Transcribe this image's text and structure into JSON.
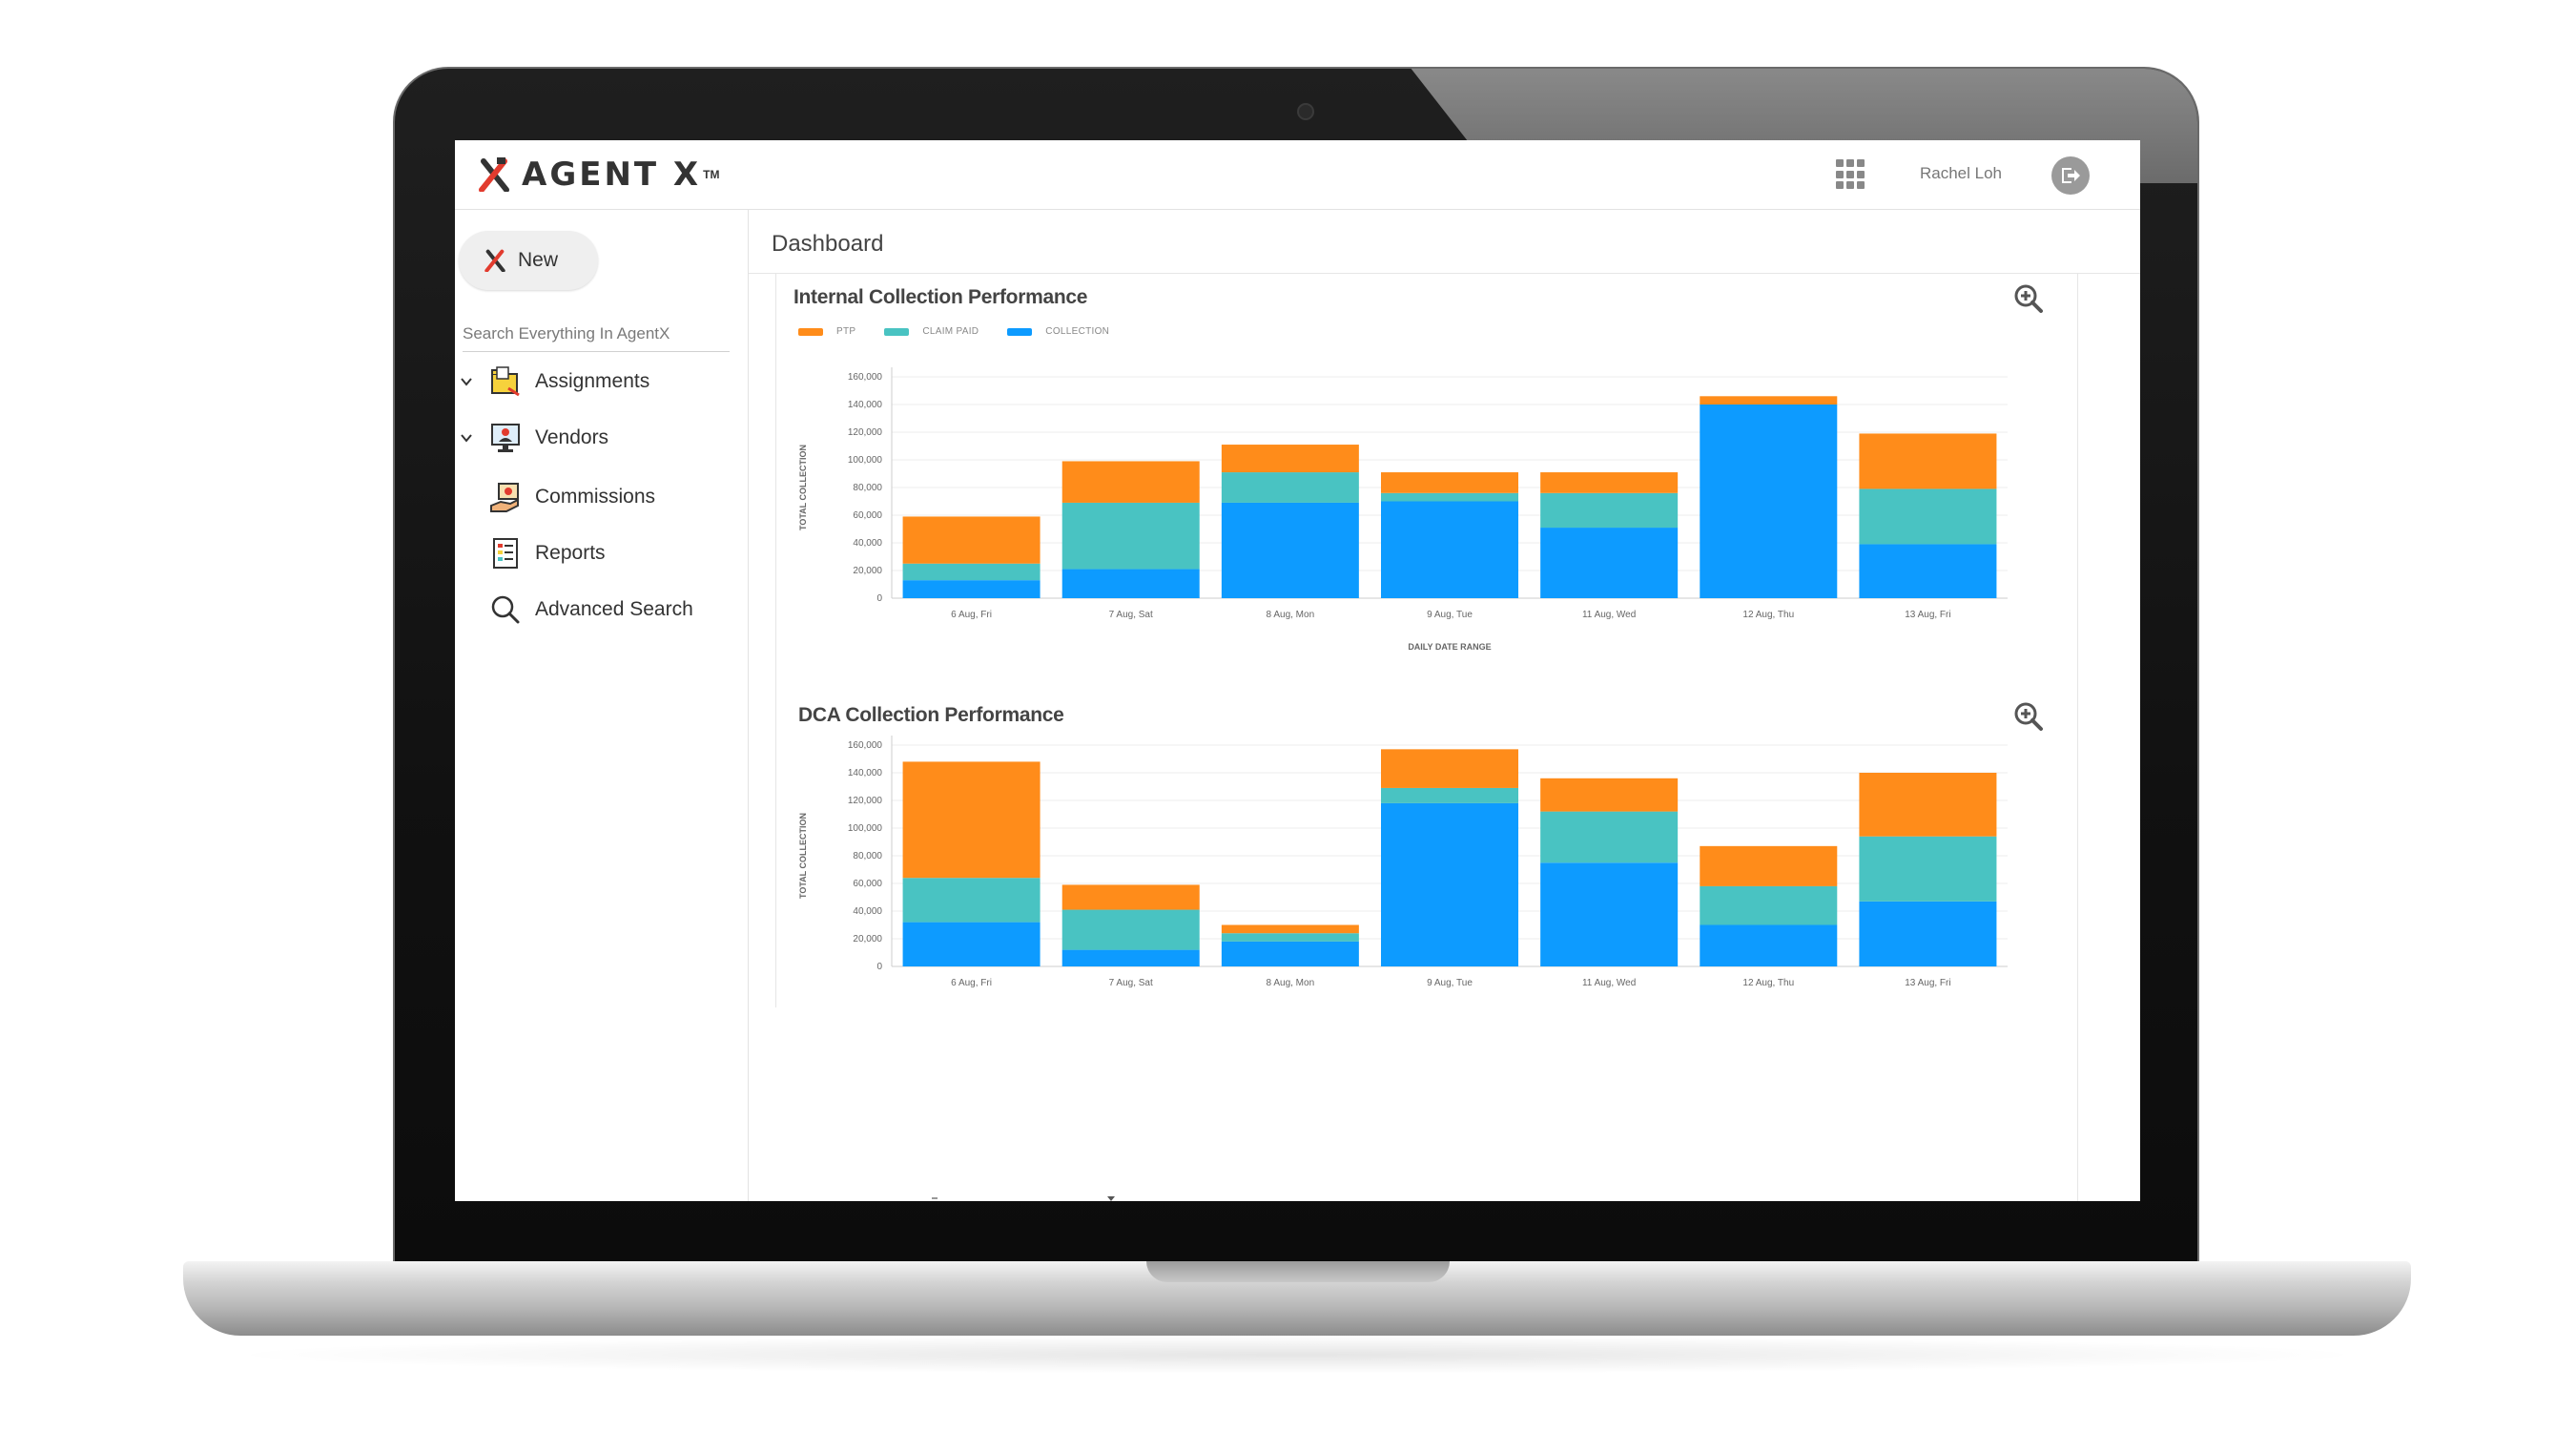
{
  "app": {
    "logo_text": "AGENT X",
    "logo_tm": "TM",
    "user_name": "Rachel Loh"
  },
  "sidebar": {
    "new_label": "New",
    "search_placeholder": "Search Everything In AgentX",
    "items": [
      {
        "label": "Assignments",
        "icon": "folder-icon",
        "expandable": true
      },
      {
        "label": "Vendors",
        "icon": "vendor-monitor-icon",
        "expandable": true
      },
      {
        "label": "Commissions",
        "icon": "money-hand-icon",
        "expandable": false
      },
      {
        "label": "Reports",
        "icon": "report-icon",
        "expandable": false
      },
      {
        "label": "Advanced Search",
        "icon": "search-icon",
        "expandable": false
      }
    ]
  },
  "page": {
    "title": "Dashboard"
  },
  "colors": {
    "ptp": "#ff8c1a",
    "claim_paid": "#49c3c2",
    "collection": "#0d9bff",
    "collection_light": "#3aabf5",
    "brand_red": "#e23b2e"
  },
  "chart_data": [
    {
      "type": "bar",
      "stacked": true,
      "title": "Internal Collection Performance",
      "xlabel": "DAILY DATE RANGE",
      "ylabel": "TOTAL COLLECTION",
      "ylim": [
        0,
        160000
      ],
      "yticks": [
        "0",
        "20,000",
        "40,000",
        "60,000",
        "80,000",
        "100,000",
        "120,000",
        "140,000",
        "160,000"
      ],
      "categories": [
        "6 Aug, Fri",
        "7 Aug, Sat",
        "8 Aug, Mon",
        "9 Aug, Tue",
        "11 Aug, Wed",
        "12 Aug, Thu",
        "13 Aug, Fri"
      ],
      "series": [
        {
          "name": "COLLECTION",
          "color": "#0d9bff",
          "values": [
            13000,
            21000,
            69000,
            70000,
            51000,
            140000,
            39000
          ]
        },
        {
          "name": "CLAIM PAID",
          "color": "#49c3c2",
          "values": [
            12000,
            48000,
            22000,
            6000,
            25000,
            0,
            40000
          ]
        },
        {
          "name": "PTP",
          "color": "#ff8c1a",
          "values": [
            34000,
            30000,
            20000,
            15000,
            15000,
            6000,
            40000
          ]
        }
      ],
      "legend": [
        "PTP",
        "CLAIM PAID",
        "COLLECTION"
      ],
      "legend_position": "top-left",
      "grid": true
    },
    {
      "type": "bar",
      "stacked": true,
      "title": "DCA Collection Performance",
      "xlabel": "",
      "ylabel": "TOTAL COLLECTION",
      "ylim": [
        0,
        160000
      ],
      "yticks": [
        "0",
        "20,000",
        "40,000",
        "60,000",
        "80,000",
        "100,000",
        "120,000",
        "140,000",
        "160,000"
      ],
      "categories": [
        "6 Aug, Fri",
        "7 Aug, Sat",
        "8 Aug, Mon",
        "9 Aug, Tue",
        "11 Aug, Wed",
        "12 Aug, Thu",
        "13 Aug, Fri"
      ],
      "series": [
        {
          "name": "COLLECTION",
          "color": "#0d9bff",
          "values": [
            32000,
            12000,
            18000,
            118000,
            75000,
            30000,
            47000
          ]
        },
        {
          "name": "CLAIM PAID",
          "color": "#49c3c2",
          "values": [
            32000,
            29000,
            6000,
            11000,
            37000,
            28000,
            47000
          ]
        },
        {
          "name": "PTP",
          "color": "#ff8c1a",
          "values": [
            84000,
            18000,
            6000,
            28000,
            24000,
            29000,
            46000
          ]
        }
      ],
      "grid": true
    }
  ]
}
